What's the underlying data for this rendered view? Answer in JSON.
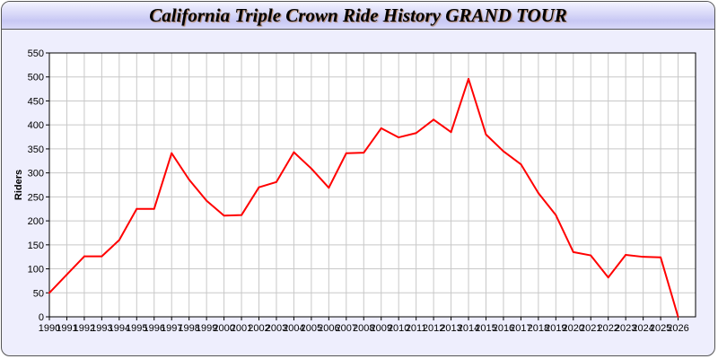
{
  "chart_data": {
    "type": "line",
    "title": "California Triple Crown Ride History GRAND TOUR",
    "xlabel": "",
    "ylabel": "Riders",
    "x": [
      1990,
      1991,
      1992,
      1993,
      1994,
      1995,
      1996,
      1997,
      1998,
      1999,
      2000,
      2001,
      2002,
      2003,
      2004,
      2005,
      2006,
      2007,
      2008,
      2009,
      2010,
      2011,
      2012,
      2013,
      2014,
      2015,
      2016,
      2017,
      2018,
      2019,
      2020,
      2021,
      2022,
      2023,
      2024,
      2025,
      2026
    ],
    "series": [
      {
        "values": [
          50,
          88,
          126,
          126,
          160,
          225,
          225,
          341,
          286,
          242,
          211,
          212,
          270,
          281,
          343,
          309,
          269,
          341,
          342,
          393,
          374,
          383,
          411,
          385,
          496,
          380,
          345,
          318,
          258,
          212,
          135,
          128,
          82,
          129,
          125,
          124,
          0
        ]
      }
    ],
    "xlim": [
      1990,
      2027
    ],
    "ylim": [
      0,
      550
    ],
    "yticks": [
      0,
      50,
      100,
      150,
      200,
      250,
      300,
      350,
      400,
      450,
      500,
      550
    ],
    "grid": true,
    "line_color": "#ff0000",
    "background_color": "#eeeefd"
  }
}
